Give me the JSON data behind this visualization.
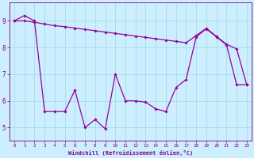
{
  "line1_x": [
    0,
    1,
    2,
    3,
    4,
    5,
    6,
    7,
    8,
    9,
    10,
    11,
    12,
    13,
    14,
    15,
    16,
    17,
    18,
    19,
    20,
    21,
    22,
    23
  ],
  "line1_y": [
    9.0,
    9.0,
    8.95,
    8.88,
    8.82,
    8.78,
    8.73,
    8.68,
    8.63,
    8.58,
    8.53,
    8.48,
    8.43,
    8.38,
    8.33,
    8.28,
    8.23,
    8.18,
    8.45,
    8.72,
    8.42,
    8.12,
    7.95,
    6.6
  ],
  "line2_x": [
    0,
    1,
    2,
    3,
    4,
    5,
    6,
    7,
    8,
    9,
    10,
    11,
    12,
    13,
    14,
    15,
    16,
    17,
    18,
    19,
    20,
    21,
    22,
    23
  ],
  "line2_y": [
    9.0,
    9.2,
    9.0,
    5.6,
    5.6,
    5.6,
    6.4,
    5.0,
    5.3,
    4.95,
    7.0,
    6.0,
    6.0,
    5.95,
    5.7,
    5.6,
    6.5,
    6.8,
    8.4,
    8.7,
    8.4,
    8.1,
    6.6,
    6.6
  ],
  "color": "#990099",
  "bg_color": "#cceeff",
  "grid_color": "#99dddd",
  "xlabel": "Windchill (Refroidissement éolien,°C)",
  "ylim": [
    4.5,
    9.7
  ],
  "xlim": [
    -0.5,
    23.5
  ],
  "yticks": [
    5,
    6,
    7,
    8,
    9
  ],
  "xticks": [
    0,
    1,
    2,
    3,
    4,
    5,
    6,
    7,
    8,
    9,
    10,
    11,
    12,
    13,
    14,
    15,
    16,
    17,
    18,
    19,
    20,
    21,
    22,
    23
  ],
  "xtick_labels": [
    "0",
    "1",
    "2",
    "3",
    "4",
    "5",
    "6",
    "7",
    "8",
    "9",
    "10",
    "11",
    "12",
    "13",
    "14",
    "15",
    "16",
    "17",
    "18",
    "19",
    "20",
    "21",
    "22",
    "23"
  ]
}
